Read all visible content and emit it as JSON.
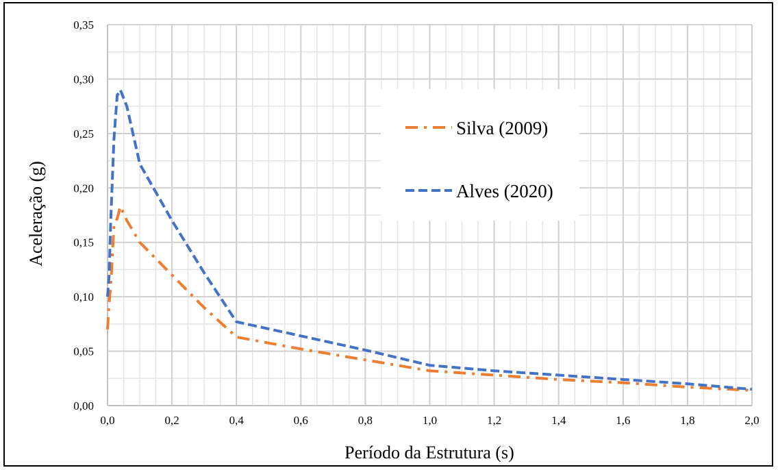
{
  "chart_data": {
    "type": "line",
    "title": "",
    "xlabel": "Período da Estrutura (s)",
    "ylabel": "Aceleração  (g)",
    "xlim": [
      0,
      2.0
    ],
    "ylim": [
      0,
      0.35
    ],
    "x_major_step": 0.2,
    "x_minor_step": 0.05,
    "y_major_step": 0.05,
    "y_minor_step": 0.025,
    "x_tick_labels": [
      "0,0",
      "0,2",
      "0,4",
      "0,6",
      "0,8",
      "1,0",
      "1,2",
      "1,4",
      "1,6",
      "1,8",
      "2,0"
    ],
    "y_tick_labels": [
      "0,00",
      "0,05",
      "0,10",
      "0,15",
      "0,20",
      "0,25",
      "0,30",
      "0,35"
    ],
    "grid": true,
    "legend_position": "upper-right",
    "series": [
      {
        "name": "Silva (2009)",
        "color": "#ED7D31",
        "style": "dash-dot",
        "points": [
          [
            0.0,
            0.07
          ],
          [
            0.005,
            0.095
          ],
          [
            0.01,
            0.11
          ],
          [
            0.02,
            0.165
          ],
          [
            0.03,
            0.172
          ],
          [
            0.04,
            0.183
          ],
          [
            0.06,
            0.17
          ],
          [
            0.1,
            0.15
          ],
          [
            0.2,
            0.12
          ],
          [
            0.3,
            0.09
          ],
          [
            0.4,
            0.063
          ],
          [
            0.6,
            0.052
          ],
          [
            0.8,
            0.042
          ],
          [
            1.0,
            0.032
          ],
          [
            1.2,
            0.028
          ],
          [
            1.4,
            0.024
          ],
          [
            1.6,
            0.021
          ],
          [
            1.8,
            0.017
          ],
          [
            2.0,
            0.014
          ]
        ]
      },
      {
        "name": "Alves (2020)",
        "color": "#4472C4",
        "style": "dash",
        "points": [
          [
            0.0,
            0.1
          ],
          [
            0.005,
            0.12
          ],
          [
            0.01,
            0.17
          ],
          [
            0.02,
            0.245
          ],
          [
            0.03,
            0.285
          ],
          [
            0.04,
            0.29
          ],
          [
            0.06,
            0.275
          ],
          [
            0.1,
            0.222
          ],
          [
            0.2,
            0.17
          ],
          [
            0.3,
            0.122
          ],
          [
            0.4,
            0.077
          ],
          [
            0.6,
            0.064
          ],
          [
            0.8,
            0.051
          ],
          [
            1.0,
            0.037
          ],
          [
            1.2,
            0.032
          ],
          [
            1.4,
            0.028
          ],
          [
            1.6,
            0.024
          ],
          [
            1.8,
            0.02
          ],
          [
            2.0,
            0.015
          ]
        ]
      }
    ]
  }
}
